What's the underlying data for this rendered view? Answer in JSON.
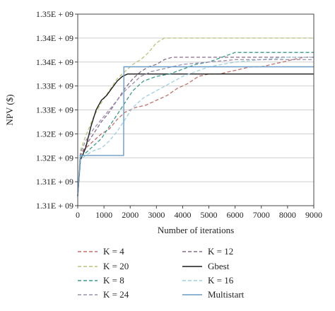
{
  "chart_data": {
    "type": "line",
    "xlabel": "Number of iterations",
    "ylabel": "NPV ($)",
    "xlim": [
      0,
      9000
    ],
    "ylim": [
      1.31,
      1.35
    ],
    "x_ticks": [
      0,
      1000,
      2000,
      3000,
      4000,
      5000,
      6000,
      7000,
      8000,
      9000
    ],
    "x_tick_labels": [
      "0",
      "1000",
      "2000",
      "3000",
      "4000",
      "5000",
      "6000",
      "7000",
      "8000",
      "9000"
    ],
    "y_ticks": [
      1.31,
      1.315,
      1.32,
      1.325,
      1.33,
      1.335,
      1.34,
      1.345,
      1.35
    ],
    "y_tick_labels": [
      "1.31E + 09",
      "1.31E + 09",
      "1.32E + 09",
      "1.32E + 09",
      "1.33E + 09",
      "1.33E + 09",
      "1.34E + 09",
      "1.34E + 09",
      "1.35E + 09"
    ],
    "grid": "horizontal",
    "legend_position": "bottom",
    "series": [
      {
        "name": "K = 4",
        "color": "#c2706a",
        "dash": "dashed",
        "x": [
          0,
          100,
          300,
          600,
          900,
          1200,
          1500,
          1800,
          2200,
          2600,
          3000,
          3400,
          3800,
          4200,
          4600,
          5000,
          5400,
          5800,
          6200,
          6600,
          7000,
          7400,
          7800,
          8200,
          8600,
          9000
        ],
        "y": [
          1.312,
          1.3205,
          1.322,
          1.3235,
          1.325,
          1.326,
          1.328,
          1.3295,
          1.3305,
          1.331,
          1.332,
          1.333,
          1.3345,
          1.3355,
          1.337,
          1.3375,
          1.3375,
          1.338,
          1.3385,
          1.339,
          1.339,
          1.3395,
          1.34,
          1.3405,
          1.341,
          1.341
        ]
      },
      {
        "name": "K = 12",
        "color": "#8a6a8a",
        "dash": "dashed",
        "x": [
          0,
          100,
          300,
          600,
          900,
          1200,
          1500,
          1800,
          2100,
          2400,
          2700,
          3000,
          3300,
          3600,
          4000,
          5000,
          6000,
          7000,
          8000,
          9000
        ],
        "y": [
          1.312,
          1.3205,
          1.3225,
          1.325,
          1.3275,
          1.3295,
          1.332,
          1.3345,
          1.3365,
          1.338,
          1.339,
          1.3395,
          1.3405,
          1.341,
          1.341,
          1.341,
          1.341,
          1.341,
          1.341,
          1.341
        ]
      },
      {
        "name": "K = 20",
        "color": "#b9c47a",
        "dash": "dashed",
        "x": [
          0,
          100,
          300,
          600,
          900,
          1200,
          1500,
          1800,
          2100,
          2400,
          2700,
          3000,
          3300,
          4000,
          5000,
          6000,
          7000,
          8000,
          9000
        ],
        "y": [
          1.312,
          1.3215,
          1.3245,
          1.3285,
          1.3315,
          1.334,
          1.3365,
          1.338,
          1.3395,
          1.3405,
          1.342,
          1.344,
          1.345,
          1.345,
          1.345,
          1.345,
          1.345,
          1.345,
          1.345
        ]
      },
      {
        "name": "Gbest",
        "color": "#1a1a1a",
        "dash": "solid",
        "x": [
          0,
          100,
          300,
          500,
          700,
          900,
          1100,
          1300,
          1500,
          1700,
          1900,
          2500,
          4000,
          5000,
          6000,
          7000,
          8000,
          9000
        ],
        "y": [
          1.312,
          1.3195,
          1.322,
          1.3265,
          1.33,
          1.332,
          1.333,
          1.3345,
          1.336,
          1.337,
          1.3375,
          1.3375,
          1.3375,
          1.3375,
          1.3375,
          1.3375,
          1.3375,
          1.3375
        ]
      },
      {
        "name": "K = 8",
        "color": "#3a9a88",
        "dash": "dashed",
        "x": [
          0,
          100,
          300,
          600,
          900,
          1200,
          1500,
          1800,
          2100,
          2500,
          3000,
          3500,
          4000,
          4500,
          5000,
          5500,
          6000,
          7000,
          8000,
          9000
        ],
        "y": [
          1.312,
          1.32,
          1.321,
          1.3225,
          1.324,
          1.3265,
          1.329,
          1.3315,
          1.334,
          1.336,
          1.337,
          1.3375,
          1.3385,
          1.3395,
          1.34,
          1.341,
          1.342,
          1.342,
          1.342,
          1.342
        ]
      },
      {
        "name": "K = 16",
        "color": "#9ecfe0",
        "dash": "dashed",
        "x": [
          0,
          100,
          300,
          600,
          900,
          1200,
          1500,
          1800,
          2100,
          2500,
          3000,
          3500,
          4000,
          4500,
          5000,
          5500,
          6000,
          7000,
          8000,
          9000
        ],
        "y": [
          1.312,
          1.3195,
          1.3205,
          1.3215,
          1.322,
          1.3235,
          1.3255,
          1.328,
          1.3305,
          1.3325,
          1.334,
          1.3355,
          1.337,
          1.338,
          1.339,
          1.3395,
          1.34,
          1.3405,
          1.341,
          1.341
        ]
      },
      {
        "name": "K = 24",
        "color": "#9a8db0",
        "dash": "dashed",
        "x": [
          0,
          100,
          300,
          600,
          900,
          1200,
          1500,
          1800,
          2100,
          2400,
          2800,
          3200,
          3600,
          4000,
          5000,
          6000,
          7000,
          8000,
          9000
        ],
        "y": [
          1.312,
          1.321,
          1.3235,
          1.326,
          1.328,
          1.33,
          1.332,
          1.334,
          1.3355,
          1.337,
          1.338,
          1.3385,
          1.339,
          1.3395,
          1.34,
          1.3405,
          1.3405,
          1.3405,
          1.3405
        ]
      },
      {
        "name": "Multistart",
        "color": "#6a9bc4",
        "dash": "solid",
        "x": [
          0,
          100,
          1000,
          1750,
          1760,
          2500,
          4000,
          5000,
          6000,
          7000,
          8000,
          9000
        ],
        "y": [
          1.312,
          1.3205,
          1.3205,
          1.3205,
          1.339,
          1.339,
          1.339,
          1.339,
          1.339,
          1.339,
          1.339,
          1.339
        ]
      }
    ]
  }
}
